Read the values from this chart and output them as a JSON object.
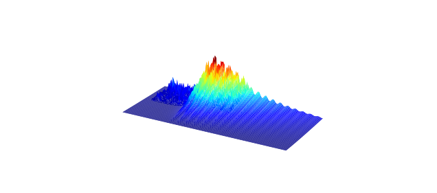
{
  "n_time": 120,
  "n_freq": 80,
  "colormap": "jet",
  "background_color": "#ffffff",
  "elev": 22,
  "azim": -60,
  "figsize": [
    9.5,
    4.2
  ],
  "dpi": 67,
  "peak_time": 0.3,
  "rise_steepness": 20,
  "decay_rate": 3.5,
  "fringe_frequency": 22,
  "fringe_amp": 0.35,
  "fringe_decay": 5.0,
  "fringe_onset": 0.28,
  "spike_amp": 0.12,
  "freq_profile_power": 1.5,
  "base_level": 0.02
}
